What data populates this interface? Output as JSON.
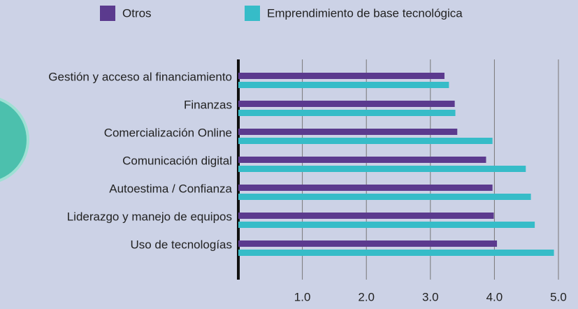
{
  "chart_data": {
    "type": "bar",
    "orientation": "horizontal",
    "categories": [
      "Gestión y acceso al financiamiento",
      "Finanzas",
      "Comercialización Online",
      "Comunicación digital",
      "Autoestima / Confianza",
      "Liderazgo y manejo de equipos",
      "Uso de tecnologías"
    ],
    "series": [
      {
        "name": "Otros",
        "color": "#5b3a8e",
        "values": [
          3.22,
          3.38,
          3.42,
          3.87,
          3.97,
          3.99,
          4.04
        ]
      },
      {
        "name": "Emprendimiento de base tecnológica",
        "color": "#36bcc8",
        "values": [
          3.29,
          3.39,
          3.97,
          4.49,
          4.57,
          4.63,
          4.93
        ]
      }
    ],
    "xlim": [
      0,
      5
    ],
    "xticks": [
      {
        "value": 1,
        "label": "1.0"
      },
      {
        "value": 2,
        "label": "2.0"
      },
      {
        "value": 3,
        "label": "3.0"
      },
      {
        "value": 4,
        "label": "4.0"
      },
      {
        "value": 5,
        "label": "5.0"
      }
    ],
    "grid": true,
    "legend": "top"
  }
}
